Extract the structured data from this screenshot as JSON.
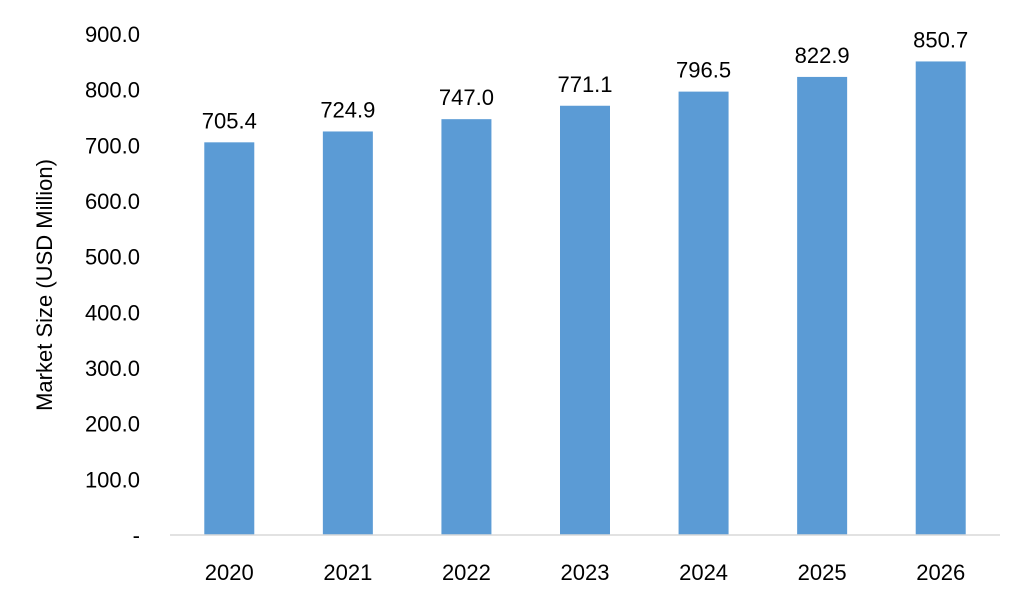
{
  "chart_data": {
    "type": "bar",
    "title": "",
    "xlabel": "",
    "ylabel": "Market Size (USD Million)",
    "categories": [
      "2020",
      "2021",
      "2022",
      "2023",
      "2024",
      "2025",
      "2026"
    ],
    "values": [
      705.4,
      724.9,
      747.0,
      771.1,
      796.5,
      822.9,
      850.7
    ],
    "value_labels": [
      "705.4",
      "724.9",
      "747.0",
      "771.1",
      "796.5",
      "822.9",
      "850.7"
    ],
    "ylim": [
      0,
      900
    ],
    "yticks": [
      0,
      100,
      200,
      300,
      400,
      500,
      600,
      700,
      800,
      900
    ],
    "ytick_labels": [
      "-",
      "100.0",
      "200.0",
      "300.0",
      "400.0",
      "500.0",
      "600.0",
      "700.0",
      "800.0",
      "900.0"
    ],
    "grid": false,
    "legend": "none",
    "bar_color": "#5B9BD5",
    "axis_color": "#D9D9D9"
  }
}
